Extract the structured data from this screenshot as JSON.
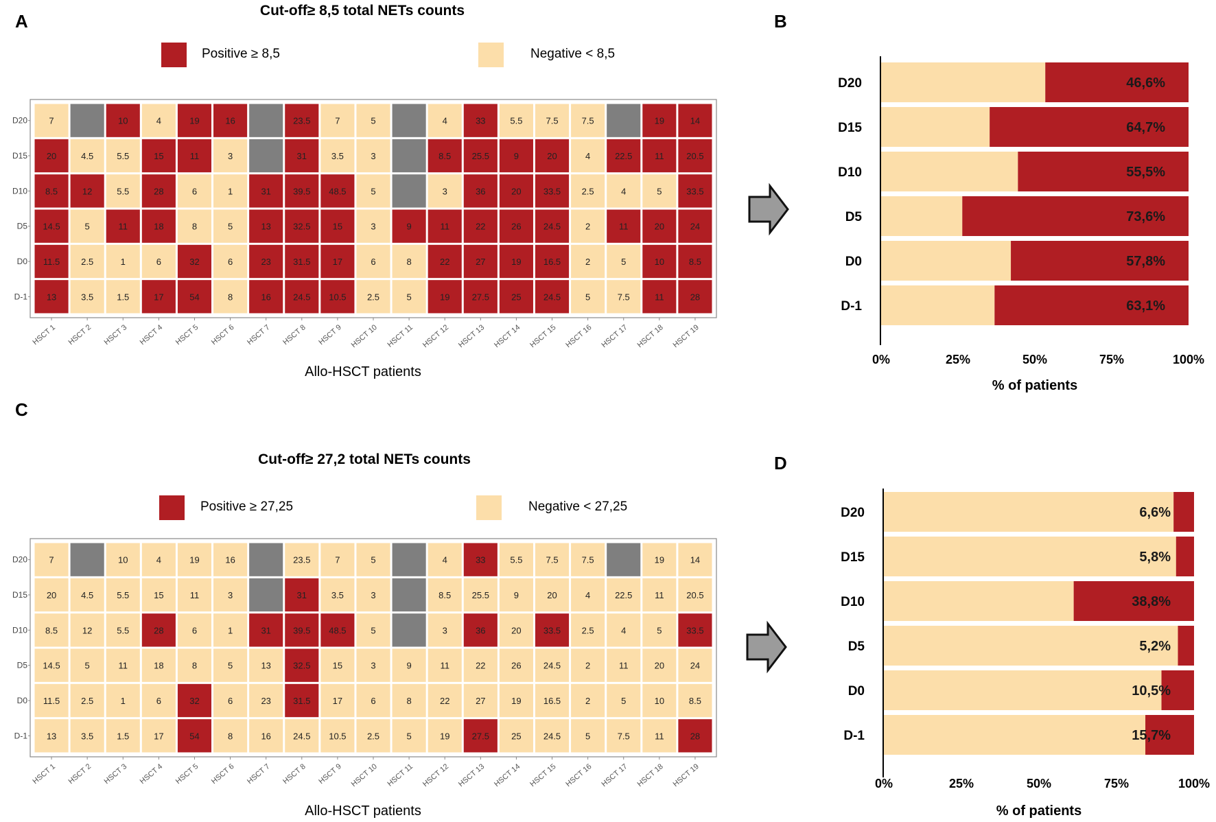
{
  "colors": {
    "positive": "#b01e23",
    "negative": "#fcdeaa",
    "missing": "#7f7f7f"
  },
  "panels": [
    {
      "letter": "A"
    },
    {
      "letter": "B"
    },
    {
      "letter": "C"
    },
    {
      "letter": "D"
    }
  ],
  "chart_data": [
    {
      "type": "heatmap",
      "panel": "A",
      "title": "Cut-off≥ 8,5 total NETs counts",
      "legend": [
        {
          "label": "Positive ≥ 8,5",
          "color": "#b01e23"
        },
        {
          "label": "Negative < 8,5",
          "color": "#fcdeaa"
        }
      ],
      "xlabel": "Allo-HSCT patients",
      "threshold": 8.5,
      "columns": [
        "HSCT 1",
        "HSCT 2",
        "HSCT 3",
        "HSCT 4",
        "HSCT 5",
        "HSCT 6",
        "HSCT 7",
        "HSCT 8",
        "HSCT 9",
        "HSCT 10",
        "HSCT 11",
        "HSCT 12",
        "HSCT 13",
        "HSCT 14",
        "HSCT 15",
        "HSCT 16",
        "HSCT 17",
        "HSCT 18",
        "HSCT 19"
      ],
      "rows": [
        "D20",
        "D15",
        "D10",
        "D5",
        "D0",
        "D-1"
      ],
      "values": [
        [
          "7",
          null,
          "10",
          "4",
          "19",
          "16",
          null,
          "23.5",
          "7",
          "5",
          null,
          "4",
          "33",
          "5.5",
          "7.5",
          "7.5",
          null,
          "19",
          "14"
        ],
        [
          "20",
          "4.5",
          "5.5",
          "15",
          "11",
          "3",
          null,
          "31",
          "3.5",
          "3",
          null,
          "8.5",
          "25.5",
          "9",
          "20",
          "4",
          "22.5",
          "11",
          "20.5"
        ],
        [
          "8.5",
          "12",
          "5.5",
          "28",
          "6",
          "1",
          "31",
          "39.5",
          "48.5",
          "5",
          null,
          "3",
          "36",
          "20",
          "33.5",
          "2.5",
          "4",
          "5",
          "33.5"
        ],
        [
          "14.5",
          "5",
          "11",
          "18",
          "8",
          "5",
          "13",
          "32.5",
          "15",
          "3",
          "9",
          "11",
          "22",
          "26",
          "24.5",
          "2",
          "11",
          "20",
          "24"
        ],
        [
          "11.5",
          "2.5",
          "1",
          "6",
          "32",
          "6",
          "23",
          "31.5",
          "17",
          "6",
          "8",
          "22",
          "27",
          "19",
          "16.5",
          "2",
          "5",
          "10",
          "8.5"
        ],
        [
          "13",
          "3.5",
          "1.5",
          "17",
          "54",
          "8",
          "16",
          "24.5",
          "10.5",
          "2.5",
          "5",
          "19",
          "27.5",
          "25",
          "24.5",
          "5",
          "7.5",
          "11",
          "28"
        ]
      ]
    },
    {
      "type": "bar",
      "panel": "B",
      "orientation": "horizontal",
      "stacked": true,
      "categories": [
        "D20",
        "D15",
        "D10",
        "D5",
        "D0",
        "D-1"
      ],
      "series": [
        {
          "name": "Negative",
          "color": "#fcdeaa",
          "values": [
            53.4,
            35.3,
            44.5,
            26.4,
            42.2,
            36.9
          ]
        },
        {
          "name": "Positive",
          "color": "#b01e23",
          "values": [
            46.6,
            64.7,
            55.5,
            73.6,
            57.8,
            63.1
          ]
        }
      ],
      "value_labels": [
        "46,6%",
        "64,7%",
        "55,5%",
        "73,6%",
        "57,8%",
        "63,1%"
      ],
      "xticks": [
        "0%",
        "25%",
        "50%",
        "75%",
        "100%"
      ],
      "xlim": [
        0,
        100
      ],
      "xlabel": "% of patients"
    },
    {
      "type": "heatmap",
      "panel": "C",
      "title": "Cut-off≥ 27,2 total NETs counts",
      "legend": [
        {
          "label": "Positive ≥ 27,25",
          "color": "#b01e23"
        },
        {
          "label": "Negative < 27,25",
          "color": "#fcdeaa"
        }
      ],
      "xlabel": "Allo-HSCT patients",
      "threshold": 27.25,
      "columns": [
        "HSCT 1",
        "HSCT 2",
        "HSCT 3",
        "HSCT 4",
        "HSCT 5",
        "HSCT 6",
        "HSCT 7",
        "HSCT 8",
        "HSCT 9",
        "HSCT 10",
        "HSCT 11",
        "HSCT 12",
        "HSCT 13",
        "HSCT 14",
        "HSCT 15",
        "HSCT 16",
        "HSCT 17",
        "HSCT 18",
        "HSCT 19"
      ],
      "rows": [
        "D20",
        "D15",
        "D10",
        "D5",
        "D0",
        "D-1"
      ],
      "values": [
        [
          "7",
          null,
          "10",
          "4",
          "19",
          "16",
          null,
          "23.5",
          "7",
          "5",
          null,
          "4",
          "33",
          "5.5",
          "7.5",
          "7.5",
          null,
          "19",
          "14"
        ],
        [
          "20",
          "4.5",
          "5.5",
          "15",
          "11",
          "3",
          null,
          "31",
          "3.5",
          "3",
          null,
          "8.5",
          "25.5",
          "9",
          "20",
          "4",
          "22.5",
          "11",
          "20.5"
        ],
        [
          "8.5",
          "12",
          "5.5",
          "28",
          "6",
          "1",
          "31",
          "39.5",
          "48.5",
          "5",
          null,
          "3",
          "36",
          "20",
          "33.5",
          "2.5",
          "4",
          "5",
          "33.5"
        ],
        [
          "14.5",
          "5",
          "11",
          "18",
          "8",
          "5",
          "13",
          "32.5",
          "15",
          "3",
          "9",
          "11",
          "22",
          "26",
          "24.5",
          "2",
          "11",
          "20",
          "24"
        ],
        [
          "11.5",
          "2.5",
          "1",
          "6",
          "32",
          "6",
          "23",
          "31.5",
          "17",
          "6",
          "8",
          "22",
          "27",
          "19",
          "16.5",
          "2",
          "5",
          "10",
          "8.5"
        ],
        [
          "13",
          "3.5",
          "1.5",
          "17",
          "54",
          "8",
          "16",
          "24.5",
          "10.5",
          "2.5",
          "5",
          "19",
          "27.5",
          "25",
          "24.5",
          "5",
          "7.5",
          "11",
          "28"
        ]
      ]
    },
    {
      "type": "bar",
      "panel": "D",
      "orientation": "horizontal",
      "stacked": true,
      "categories": [
        "D20",
        "D15",
        "D10",
        "D5",
        "D0",
        "D-1"
      ],
      "series": [
        {
          "name": "Negative",
          "color": "#fcdeaa",
          "values": [
            93.4,
            94.2,
            61.2,
            94.8,
            89.5,
            84.3
          ]
        },
        {
          "name": "Positive",
          "color": "#b01e23",
          "values": [
            6.6,
            5.8,
            38.8,
            5.2,
            10.5,
            15.7
          ]
        }
      ],
      "value_labels": [
        "6,6%",
        "5,8%",
        "38,8%",
        "5,2%",
        "10,5%",
        "15,7%"
      ],
      "xticks": [
        "0%",
        "25%",
        "50%",
        "75%",
        "100%"
      ],
      "xlim": [
        0,
        100
      ],
      "xlabel": "% of patients"
    }
  ]
}
